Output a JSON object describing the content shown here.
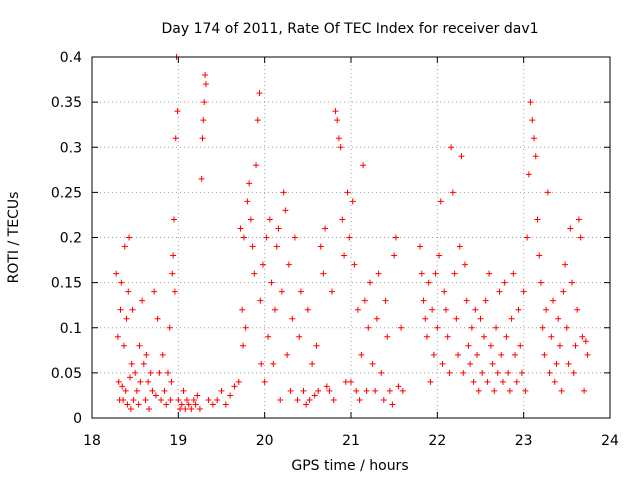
{
  "chart_data": {
    "type": "scatter",
    "title": "Day 174 of 2011, Rate Of TEC Index for receiver dav1",
    "xlabel": "GPS time / hours",
    "ylabel": "ROTI / TECUs",
    "xlim": [
      18,
      24
    ],
    "ylim": [
      0,
      0.4
    ],
    "xticks": [
      "18",
      "19",
      "20",
      "21",
      "22",
      "23",
      "24"
    ],
    "yticks": [
      "0",
      "0.05",
      "0.1",
      "0.15",
      "0.2",
      "0.25",
      "0.3",
      "0.35",
      "0.4"
    ],
    "grid": true,
    "marker": "+",
    "color": "#ff0000",
    "series": [
      {
        "points": [
          [
            18.28,
            0.16
          ],
          [
            18.3,
            0.09
          ],
          [
            18.31,
            0.04
          ],
          [
            18.32,
            0.02
          ],
          [
            18.33,
            0.12
          ],
          [
            18.34,
            0.15
          ],
          [
            18.35,
            0.035
          ],
          [
            18.36,
            0.02
          ],
          [
            18.37,
            0.08
          ],
          [
            18.38,
            0.19
          ],
          [
            18.39,
            0.03
          ],
          [
            18.4,
            0.11
          ],
          [
            18.41,
            0.015
          ],
          [
            18.42,
            0.14
          ],
          [
            18.43,
            0.2
          ],
          [
            18.44,
            0.045
          ],
          [
            18.45,
            0.01
          ],
          [
            18.46,
            0.06
          ],
          [
            18.47,
            0.12
          ],
          [
            18.48,
            0.02
          ],
          [
            18.5,
            0.05
          ],
          [
            18.52,
            0.03
          ],
          [
            18.54,
            0.015
          ],
          [
            18.55,
            0.08
          ],
          [
            18.56,
            0.04
          ],
          [
            18.58,
            0.13
          ],
          [
            18.6,
            0.06
          ],
          [
            18.62,
            0.02
          ],
          [
            18.63,
            0.07
          ],
          [
            18.65,
            0.04
          ],
          [
            18.66,
            0.01
          ],
          [
            18.68,
            0.05
          ],
          [
            18.7,
            0.03
          ],
          [
            18.72,
            0.14
          ],
          [
            18.74,
            0.025
          ],
          [
            18.76,
            0.11
          ],
          [
            18.78,
            0.05
          ],
          [
            18.8,
            0.02
          ],
          [
            18.82,
            0.07
          ],
          [
            18.84,
            0.03
          ],
          [
            18.86,
            0.015
          ],
          [
            18.88,
            0.05
          ],
          [
            18.9,
            0.1
          ],
          [
            18.91,
            0.02
          ],
          [
            18.92,
            0.04
          ],
          [
            18.93,
            0.16
          ],
          [
            18.94,
            0.18
          ],
          [
            18.95,
            0.22
          ],
          [
            18.96,
            0.14
          ],
          [
            18.97,
            0.31
          ],
          [
            18.98,
            0.4
          ],
          [
            18.99,
            0.34
          ],
          [
            19.0,
            0.02
          ],
          [
            19.02,
            0.01
          ],
          [
            19.04,
            0.015
          ],
          [
            19.06,
            0.03
          ],
          [
            19.08,
            0.01
          ],
          [
            19.1,
            0.02
          ],
          [
            19.12,
            0.015
          ],
          [
            19.15,
            0.01
          ],
          [
            19.18,
            0.02
          ],
          [
            19.2,
            0.015
          ],
          [
            19.22,
            0.025
          ],
          [
            19.25,
            0.01
          ],
          [
            19.27,
            0.265
          ],
          [
            19.28,
            0.31
          ],
          [
            19.29,
            0.33
          ],
          [
            19.3,
            0.35
          ],
          [
            19.31,
            0.38
          ],
          [
            19.32,
            0.37
          ],
          [
            19.35,
            0.02
          ],
          [
            19.4,
            0.015
          ],
          [
            19.45,
            0.02
          ],
          [
            19.5,
            0.03
          ],
          [
            19.55,
            0.015
          ],
          [
            19.6,
            0.025
          ],
          [
            19.65,
            0.035
          ],
          [
            19.7,
            0.04
          ],
          [
            19.72,
            0.21
          ],
          [
            19.74,
            0.12
          ],
          [
            19.75,
            0.08
          ],
          [
            19.76,
            0.2
          ],
          [
            19.78,
            0.1
          ],
          [
            19.8,
            0.24
          ],
          [
            19.82,
            0.26
          ],
          [
            19.84,
            0.22
          ],
          [
            19.86,
            0.19
          ],
          [
            19.88,
            0.16
          ],
          [
            19.9,
            0.28
          ],
          [
            19.92,
            0.33
          ],
          [
            19.94,
            0.36
          ],
          [
            19.95,
            0.13
          ],
          [
            19.96,
            0.06
          ],
          [
            19.98,
            0.17
          ],
          [
            20.0,
            0.04
          ],
          [
            20.02,
            0.2
          ],
          [
            20.04,
            0.09
          ],
          [
            20.06,
            0.22
          ],
          [
            20.08,
            0.15
          ],
          [
            20.1,
            0.06
          ],
          [
            20.12,
            0.12
          ],
          [
            20.14,
            0.19
          ],
          [
            20.16,
            0.21
          ],
          [
            20.18,
            0.02
          ],
          [
            20.2,
            0.14
          ],
          [
            20.22,
            0.25
          ],
          [
            20.24,
            0.23
          ],
          [
            20.26,
            0.07
          ],
          [
            20.28,
            0.17
          ],
          [
            20.3,
            0.03
          ],
          [
            20.32,
            0.11
          ],
          [
            20.35,
            0.2
          ],
          [
            20.38,
            0.02
          ],
          [
            20.4,
            0.09
          ],
          [
            20.42,
            0.14
          ],
          [
            20.45,
            0.03
          ],
          [
            20.48,
            0.015
          ],
          [
            20.5,
            0.12
          ],
          [
            20.52,
            0.02
          ],
          [
            20.55,
            0.06
          ],
          [
            20.58,
            0.025
          ],
          [
            20.6,
            0.08
          ],
          [
            20.62,
            0.03
          ],
          [
            20.65,
            0.19
          ],
          [
            20.68,
            0.16
          ],
          [
            20.7,
            0.21
          ],
          [
            20.72,
            0.035
          ],
          [
            20.75,
            0.03
          ],
          [
            20.78,
            0.14
          ],
          [
            20.8,
            0.02
          ],
          [
            20.82,
            0.34
          ],
          [
            20.84,
            0.33
          ],
          [
            20.86,
            0.31
          ],
          [
            20.88,
            0.3
          ],
          [
            20.9,
            0.22
          ],
          [
            20.92,
            0.18
          ],
          [
            20.94,
            0.04
          ],
          [
            20.96,
            0.25
          ],
          [
            20.98,
            0.2
          ],
          [
            21.0,
            0.04
          ],
          [
            21.02,
            0.24
          ],
          [
            21.04,
            0.17
          ],
          [
            21.06,
            0.03
          ],
          [
            21.08,
            0.12
          ],
          [
            21.1,
            0.02
          ],
          [
            21.12,
            0.07
          ],
          [
            21.14,
            0.28
          ],
          [
            21.16,
            0.13
          ],
          [
            21.18,
            0.03
          ],
          [
            21.2,
            0.1
          ],
          [
            21.22,
            0.15
          ],
          [
            21.25,
            0.06
          ],
          [
            21.28,
            0.03
          ],
          [
            21.3,
            0.11
          ],
          [
            21.32,
            0.16
          ],
          [
            21.35,
            0.05
          ],
          [
            21.38,
            0.02
          ],
          [
            21.4,
            0.13
          ],
          [
            21.42,
            0.09
          ],
          [
            21.45,
            0.03
          ],
          [
            21.48,
            0.015
          ],
          [
            21.5,
            0.18
          ],
          [
            21.52,
            0.2
          ],
          [
            21.55,
            0.035
          ],
          [
            21.58,
            0.1
          ],
          [
            21.6,
            0.03
          ],
          [
            21.8,
            0.19
          ],
          [
            21.82,
            0.16
          ],
          [
            21.84,
            0.13
          ],
          [
            21.86,
            0.11
          ],
          [
            21.88,
            0.09
          ],
          [
            21.9,
            0.15
          ],
          [
            21.92,
            0.04
          ],
          [
            21.94,
            0.12
          ],
          [
            21.96,
            0.07
          ],
          [
            21.98,
            0.16
          ],
          [
            22.0,
            0.1
          ],
          [
            22.02,
            0.18
          ],
          [
            22.04,
            0.24
          ],
          [
            22.06,
            0.06
          ],
          [
            22.08,
            0.14
          ],
          [
            22.1,
            0.12
          ],
          [
            22.12,
            0.09
          ],
          [
            22.14,
            0.05
          ],
          [
            22.16,
            0.3
          ],
          [
            22.18,
            0.25
          ],
          [
            22.2,
            0.16
          ],
          [
            22.22,
            0.11
          ],
          [
            22.24,
            0.07
          ],
          [
            22.26,
            0.19
          ],
          [
            22.28,
            0.29
          ],
          [
            22.3,
            0.05
          ],
          [
            22.32,
            0.17
          ],
          [
            22.34,
            0.13
          ],
          [
            22.36,
            0.08
          ],
          [
            22.38,
            0.06
          ],
          [
            22.4,
            0.1
          ],
          [
            22.42,
            0.04
          ],
          [
            22.44,
            0.12
          ],
          [
            22.46,
            0.07
          ],
          [
            22.48,
            0.03
          ],
          [
            22.5,
            0.11
          ],
          [
            22.52,
            0.05
          ],
          [
            22.54,
            0.09
          ],
          [
            22.56,
            0.13
          ],
          [
            22.58,
            0.04
          ],
          [
            22.6,
            0.16
          ],
          [
            22.62,
            0.08
          ],
          [
            22.64,
            0.06
          ],
          [
            22.66,
            0.03
          ],
          [
            22.68,
            0.1
          ],
          [
            22.7,
            0.05
          ],
          [
            22.72,
            0.14
          ],
          [
            22.74,
            0.07
          ],
          [
            22.76,
            0.04
          ],
          [
            22.78,
            0.15
          ],
          [
            22.8,
            0.09
          ],
          [
            22.82,
            0.05
          ],
          [
            22.84,
            0.03
          ],
          [
            22.86,
            0.11
          ],
          [
            22.88,
            0.16
          ],
          [
            22.9,
            0.07
          ],
          [
            22.92,
            0.04
          ],
          [
            22.94,
            0.12
          ],
          [
            22.96,
            0.08
          ],
          [
            22.98,
            0.05
          ],
          [
            23.0,
            0.14
          ],
          [
            23.02,
            0.03
          ],
          [
            23.04,
            0.2
          ],
          [
            23.06,
            0.27
          ],
          [
            23.08,
            0.35
          ],
          [
            23.1,
            0.33
          ],
          [
            23.12,
            0.31
          ],
          [
            23.14,
            0.29
          ],
          [
            23.16,
            0.22
          ],
          [
            23.18,
            0.18
          ],
          [
            23.2,
            0.15
          ],
          [
            23.22,
            0.1
          ],
          [
            23.24,
            0.07
          ],
          [
            23.26,
            0.12
          ],
          [
            23.28,
            0.25
          ],
          [
            23.3,
            0.05
          ],
          [
            23.32,
            0.09
          ],
          [
            23.34,
            0.13
          ],
          [
            23.36,
            0.04
          ],
          [
            23.38,
            0.06
          ],
          [
            23.4,
            0.11
          ],
          [
            23.42,
            0.08
          ],
          [
            23.44,
            0.03
          ],
          [
            23.46,
            0.14
          ],
          [
            23.48,
            0.17
          ],
          [
            23.5,
            0.1
          ],
          [
            23.52,
            0.06
          ],
          [
            23.54,
            0.21
          ],
          [
            23.56,
            0.15
          ],
          [
            23.58,
            0.05
          ],
          [
            23.6,
            0.08
          ],
          [
            23.62,
            0.12
          ],
          [
            23.64,
            0.22
          ],
          [
            23.66,
            0.2
          ],
          [
            23.68,
            0.09
          ],
          [
            23.7,
            0.03
          ],
          [
            23.72,
            0.085
          ],
          [
            23.74,
            0.07
          ]
        ]
      }
    ]
  }
}
